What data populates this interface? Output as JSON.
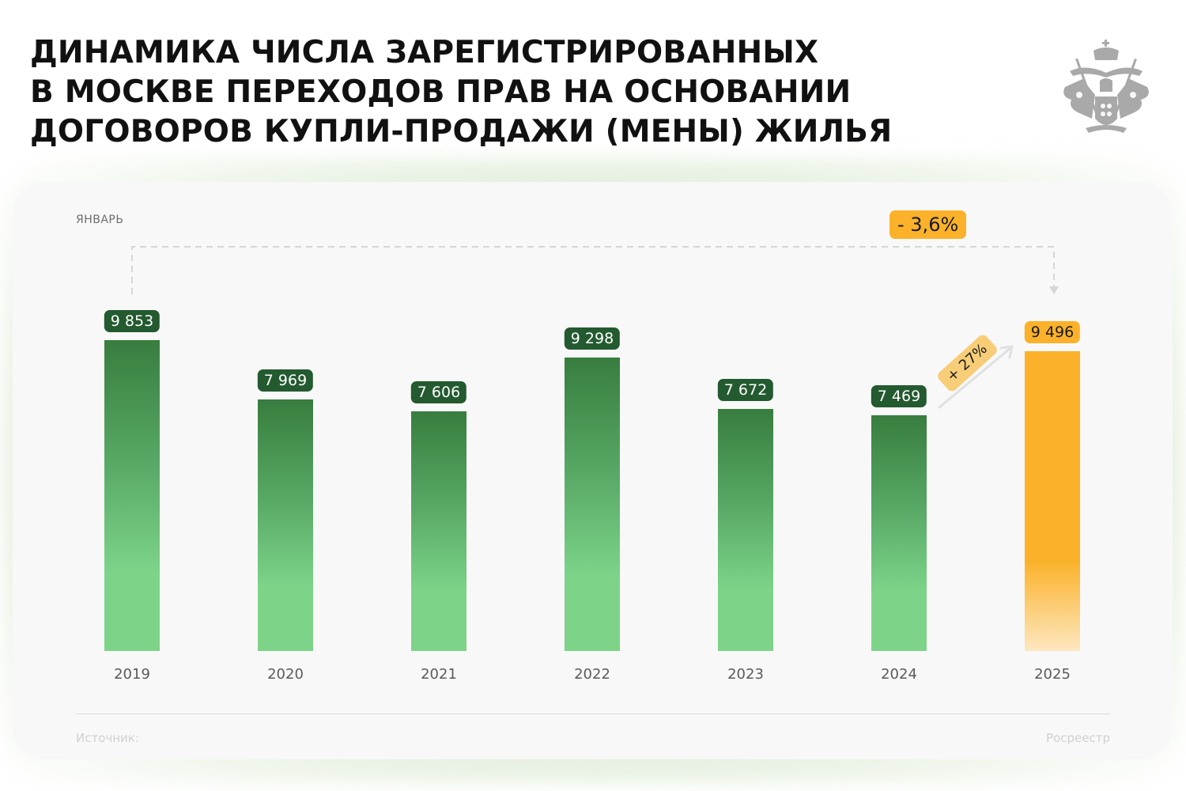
{
  "header": {
    "title": "ДИНАМИКА ЧИСЛА ЗАРЕГИСТРИРОВАННЫХ\nВ МОСКВЕ ПЕРЕХОДОВ ПРАВ НА ОСНОВАНИИ\nДОГОВОРОВ КУПЛИ-ПРОДАЖИ (МЕНЫ) ЖИЛЬЯ",
    "emblem_icon": "coat-of-arms-icon"
  },
  "chart": {
    "period_label": "ЯНВАРЬ",
    "total_change_label": "- 3,6%",
    "yoy_change_label": "+ 27%",
    "source_label": "Источник:",
    "source_value": "Росреестр",
    "colors": {
      "green_dark": "#387d3f",
      "green_light": "#7dd489",
      "label_green": "#235a2f",
      "orange": "#fbb22a",
      "card_bg": "#f8f8f8"
    },
    "labels": [
      "9 853",
      "7 969",
      "7 606",
      "9 298",
      "7 672",
      "7 469",
      "9 496"
    ],
    "years": [
      "2019",
      "2020",
      "2021",
      "2022",
      "2023",
      "2024",
      "2025"
    ]
  },
  "chart_data": {
    "type": "bar",
    "title": "Динамика числа зарегистрированных в Москве переходов прав на основании договоров купли-продажи (мены) жилья",
    "subtitle": "Январь",
    "categories": [
      "2019",
      "2020",
      "2021",
      "2022",
      "2023",
      "2024",
      "2025"
    ],
    "values": [
      9853,
      7969,
      7606,
      9298,
      7672,
      7469,
      9496
    ],
    "highlight": {
      "category": "2025",
      "color": "#fbb22a"
    },
    "annotations": [
      {
        "text": "- 3,6%",
        "from": "2019",
        "to": "2025"
      },
      {
        "text": "+ 27%",
        "from": "2024",
        "to": "2025"
      }
    ],
    "xlabel": "",
    "ylabel": "",
    "grid": false,
    "legend": null,
    "source": "Росреестр"
  }
}
